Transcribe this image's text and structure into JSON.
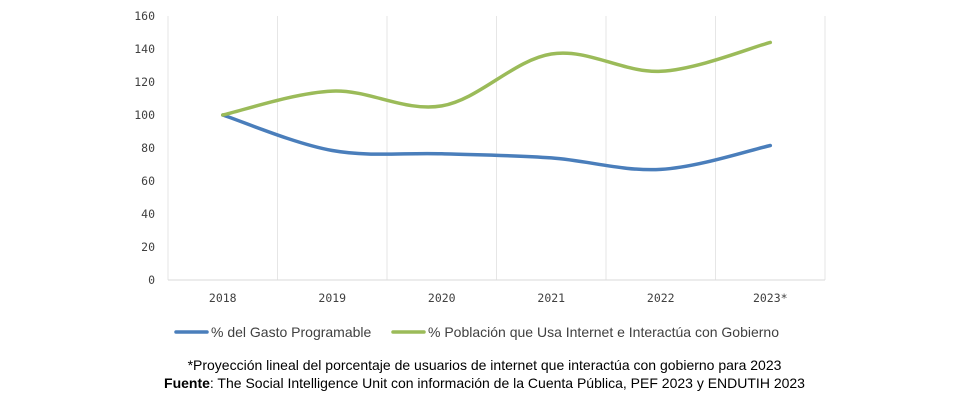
{
  "chart_data": {
    "type": "line",
    "categories": [
      "2018",
      "2019",
      "2020",
      "2021",
      "2022",
      "2023*"
    ],
    "ylim": [
      0,
      160
    ],
    "yticks": [
      0,
      20,
      40,
      60,
      80,
      100,
      120,
      140,
      160
    ],
    "series": [
      {
        "name": "% del Gasto Programable",
        "color": "#4a7ebb",
        "values": [
          100,
          78.5,
          76.5,
          74,
          67,
          81.5
        ]
      },
      {
        "name": "% Población que Usa Internet e Interactúa con Gobierno",
        "color": "#9bbb59",
        "values": [
          100,
          114.5,
          105.5,
          137,
          126.5,
          144
        ]
      }
    ],
    "xlabel": "",
    "ylabel": "",
    "title": "",
    "legend_position": "bottom",
    "grid": "vertical"
  },
  "footnotes": {
    "note": "*Proyección lineal del porcentaje de usuarios de internet que interactúa con gobierno para 2023",
    "source_label": "Fuente",
    "source_text": ": The Social Intelligence Unit con información de la Cuenta Pública, PEF 2023 y ENDUTIH 2023"
  }
}
